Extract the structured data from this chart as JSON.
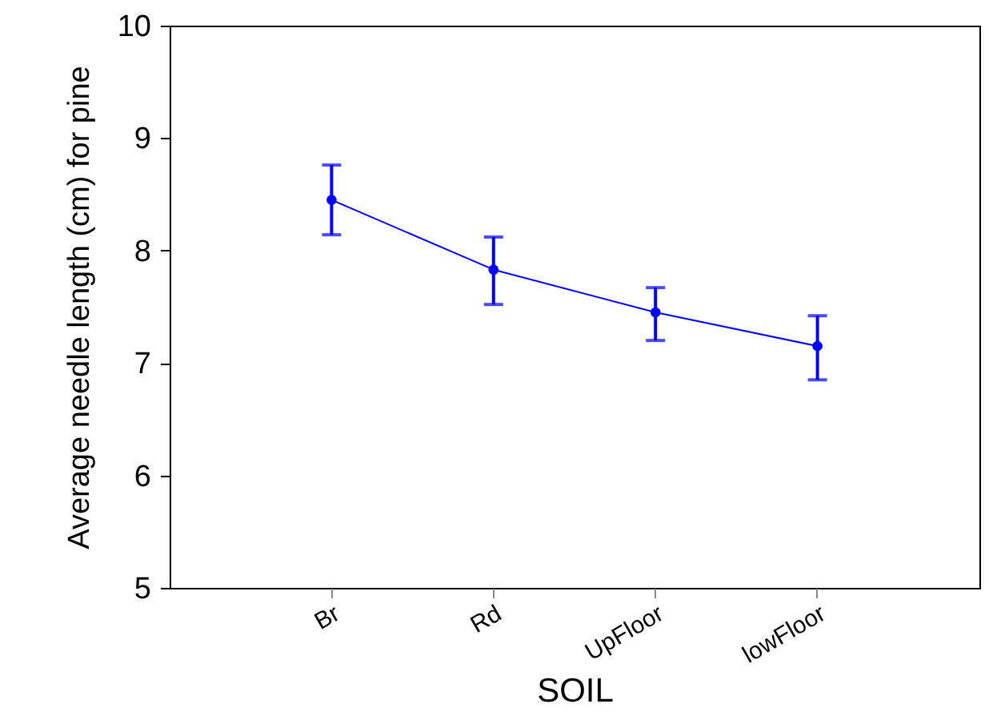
{
  "chart_data": {
    "type": "line",
    "xlabel": "SOIL",
    "ylabel": "Average needle length (cm) for pine",
    "categories": [
      "Br",
      "Rd",
      "UpFloor",
      "lowFloor"
    ],
    "series": [
      {
        "color": "#0000ff",
        "values": [
          8.45,
          7.83,
          7.45,
          7.15
        ],
        "errors": [
          [
            8.14,
            8.76
          ],
          [
            7.52,
            8.12
          ],
          [
            7.2,
            7.67
          ],
          [
            6.85,
            7.42
          ]
        ]
      }
    ],
    "ylim": [
      5,
      10
    ],
    "yticks": [
      5,
      6,
      7,
      8,
      9,
      10
    ],
    "grid": false,
    "marker": "circle",
    "line_style": "solid"
  }
}
